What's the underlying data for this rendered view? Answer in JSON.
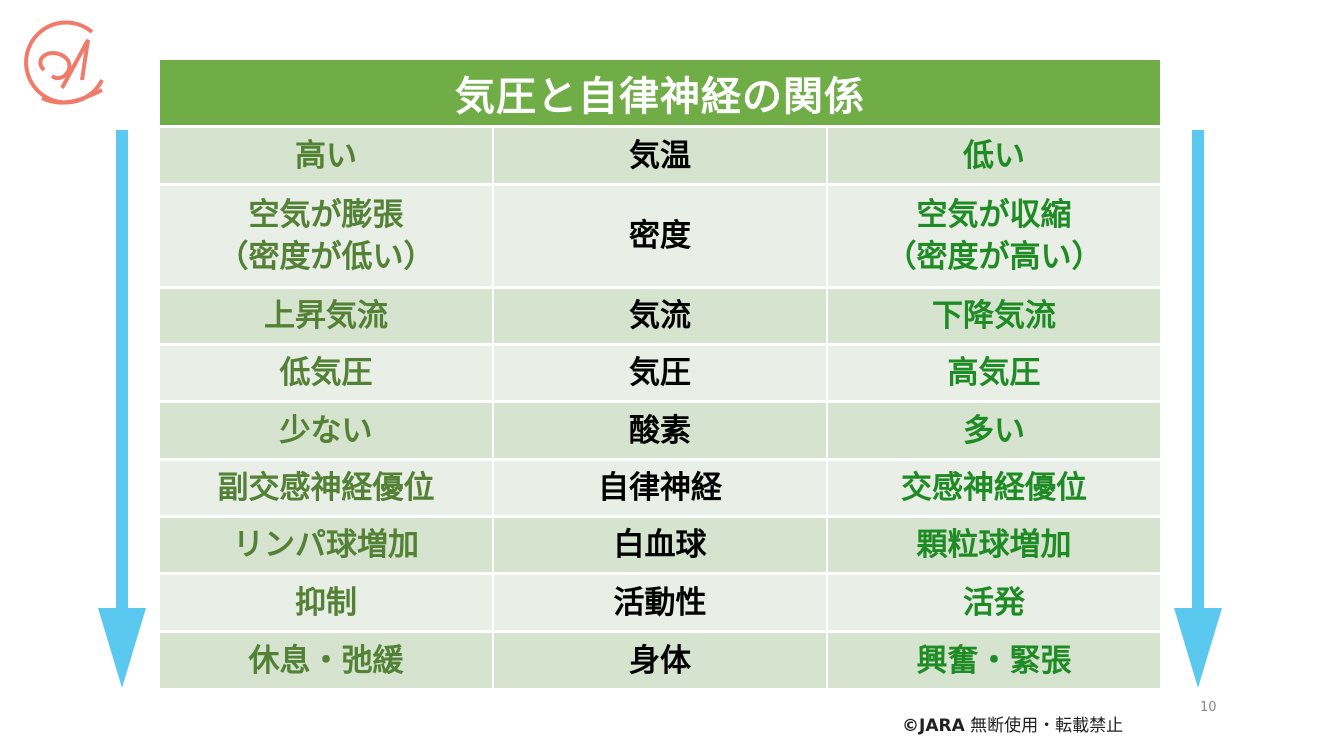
{
  "title": "気圧と自律神経の関係",
  "colors": {
    "header": "#70ad47",
    "left_text": "#538135",
    "right_text": "#1f8b24",
    "arrow": "#5bc8f0",
    "logo": "#f07b6b"
  },
  "rows": [
    {
      "left": "高い",
      "middle": "気温",
      "right": "低い"
    },
    {
      "left": "空気が膨張\n（密度が低い）",
      "middle": "密度",
      "right": "空気が収縮\n（密度が高い）"
    },
    {
      "left": "上昇気流",
      "middle": "気流",
      "right": "下降気流"
    },
    {
      "left": "低気圧",
      "middle": "気圧",
      "right": "高気圧"
    },
    {
      "left": "少ない",
      "middle": "酸素",
      "right": "多い"
    },
    {
      "left": "副交感神経優位",
      "middle": "自律神経",
      "right": "交感神経優位"
    },
    {
      "left": "リンパ球増加",
      "middle": "白血球",
      "right": "顆粒球増加"
    },
    {
      "left": "抑制",
      "middle": "活動性",
      "right": "活発"
    },
    {
      "left": "休息・弛緩",
      "middle": "身体",
      "right": "興奮・緊張"
    }
  ],
  "footer": {
    "copyright": "©JARA",
    "notice": "無断使用・転載禁止"
  },
  "page_number": "10"
}
